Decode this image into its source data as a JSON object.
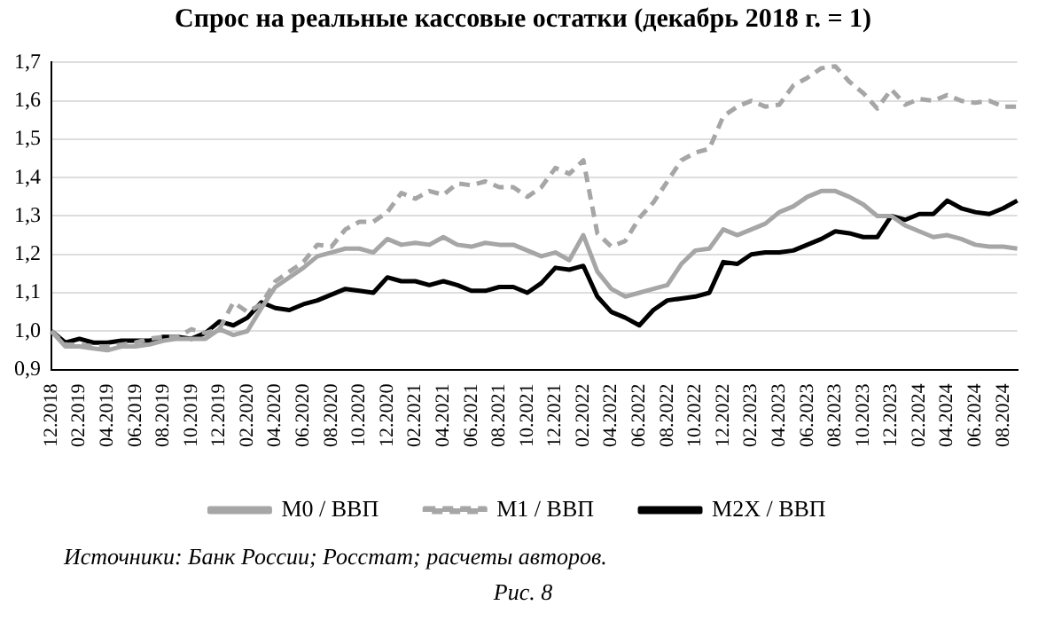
{
  "chart_data": {
    "type": "line",
    "title": "Спрос на реальные кассовые остатки (декабрь 2018 г. = 1)",
    "categories": [
      "12.2018",
      null,
      "02.2019",
      null,
      "04.2019",
      null,
      "06.2019",
      null,
      "08.2019",
      null,
      "10.2019",
      null,
      "12.2019",
      null,
      "02.2020",
      null,
      "04.2020",
      null,
      "06.2020",
      null,
      "08.2020",
      null,
      "10.2020",
      null,
      "12.2020",
      null,
      "02.2021",
      null,
      "04.2021",
      null,
      "06.2021",
      null,
      "08.2021",
      null,
      "10.2021",
      null,
      "12.2021",
      null,
      "02.2022",
      null,
      "04.2022",
      null,
      "06.2022",
      null,
      "08.2022",
      null,
      "10.2022",
      null,
      "12.2022",
      null,
      "02.2023",
      null,
      "04.2023",
      null,
      "06.2023",
      null,
      "08.2023",
      null,
      "10.2023",
      null,
      "12.2023",
      null,
      "02.2024",
      null,
      "04.2024",
      null,
      "06.2024",
      null,
      "08.2024",
      null
    ],
    "series": [
      {
        "name": "М0 / ВВП",
        "color": "#a6a6a6",
        "line_style": "solid",
        "values": [
          1.0,
          0.96,
          0.96,
          0.955,
          0.95,
          0.96,
          0.96,
          0.965,
          0.975,
          0.98,
          0.98,
          0.98,
          1.005,
          0.99,
          1.0,
          1.06,
          1.115,
          1.14,
          1.165,
          1.195,
          1.205,
          1.215,
          1.215,
          1.205,
          1.24,
          1.225,
          1.23,
          1.225,
          1.245,
          1.225,
          1.22,
          1.23,
          1.225,
          1.225,
          1.21,
          1.195,
          1.205,
          1.185,
          1.25,
          1.155,
          1.11,
          1.09,
          1.1,
          1.11,
          1.12,
          1.175,
          1.21,
          1.215,
          1.265,
          1.25,
          1.265,
          1.28,
          1.31,
          1.325,
          1.35,
          1.365,
          1.365,
          1.35,
          1.33,
          1.3,
          1.3,
          1.275,
          1.26,
          1.245,
          1.25,
          1.24,
          1.225,
          1.22,
          1.22,
          1.215
        ]
      },
      {
        "name": "М1 / ВВП",
        "color": "#a6a6a6",
        "line_style": "dashed",
        "values": [
          1.0,
          0.965,
          0.965,
          0.96,
          0.96,
          0.965,
          0.97,
          0.98,
          0.985,
          0.985,
          1.005,
          0.995,
          1.005,
          1.075,
          1.05,
          1.07,
          1.13,
          1.155,
          1.18,
          1.225,
          1.22,
          1.265,
          1.285,
          1.285,
          1.31,
          1.36,
          1.345,
          1.365,
          1.355,
          1.385,
          1.38,
          1.39,
          1.375,
          1.375,
          1.35,
          1.375,
          1.425,
          1.41,
          1.445,
          1.255,
          1.22,
          1.235,
          1.295,
          1.335,
          1.39,
          1.445,
          1.465,
          1.475,
          1.56,
          1.585,
          1.6,
          1.585,
          1.59,
          1.64,
          1.66,
          1.685,
          1.69,
          1.65,
          1.62,
          1.58,
          1.63,
          1.59,
          1.605,
          1.6,
          1.615,
          1.6,
          1.595,
          1.6,
          1.585,
          1.585
        ]
      },
      {
        "name": "М2Х / ВВП",
        "color": "#000000",
        "line_style": "solid",
        "values": [
          1.0,
          0.97,
          0.98,
          0.97,
          0.97,
          0.975,
          0.975,
          0.975,
          0.985,
          0.985,
          0.98,
          0.995,
          1.025,
          1.015,
          1.035,
          1.075,
          1.06,
          1.055,
          1.07,
          1.08,
          1.095,
          1.11,
          1.105,
          1.1,
          1.14,
          1.13,
          1.13,
          1.12,
          1.13,
          1.12,
          1.105,
          1.105,
          1.115,
          1.115,
          1.1,
          1.125,
          1.165,
          1.16,
          1.17,
          1.09,
          1.05,
          1.035,
          1.015,
          1.055,
          1.08,
          1.085,
          1.09,
          1.1,
          1.18,
          1.175,
          1.2,
          1.205,
          1.205,
          1.21,
          1.225,
          1.24,
          1.26,
          1.255,
          1.245,
          1.245,
          1.3,
          1.29,
          1.305,
          1.305,
          1.34,
          1.32,
          1.31,
          1.305,
          1.32,
          1.34
        ]
      }
    ],
    "ylim": [
      0.9,
      1.7
    ],
    "yticks": [
      {
        "value": 0.9,
        "label": "0,9"
      },
      {
        "value": 1.0,
        "label": "1,0"
      },
      {
        "value": 1.1,
        "label": "1,1"
      },
      {
        "value": 1.2,
        "label": "1,2"
      },
      {
        "value": 1.3,
        "label": "1,3"
      },
      {
        "value": 1.4,
        "label": "1,4"
      },
      {
        "value": 1.5,
        "label": "1,5"
      },
      {
        "value": 1.6,
        "label": "1,6"
      },
      {
        "value": 1.7,
        "label": "1,7"
      }
    ],
    "grid": "y",
    "legend": "bottom",
    "marker": "none",
    "annotations": [
      "Источники: Банк России; Росстат; расчеты авторов.",
      "Рис. 8"
    ]
  }
}
